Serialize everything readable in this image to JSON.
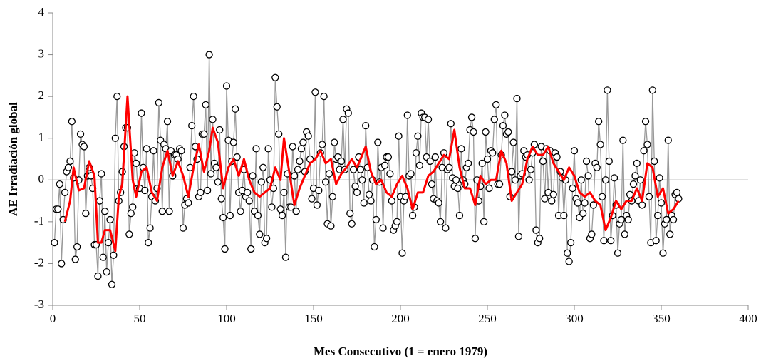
{
  "chart_data": {
    "type": "line",
    "xlabel": "Mes Consecutivo (1 = enero 1979)",
    "ylabel": "AE Irradiación global",
    "xlim": [
      0,
      400
    ],
    "xticks": [
      0,
      50,
      100,
      150,
      200,
      250,
      300,
      350,
      400
    ],
    "ylim": [
      -3,
      4
    ],
    "yticks": [
      -3,
      -2,
      -1,
      0,
      1,
      2,
      3,
      4
    ],
    "series": [
      {
        "color": "#999999",
        "marker": true,
        "x": [
          1,
          2,
          3,
          4,
          5,
          6,
          7,
          8,
          9,
          10,
          11,
          12,
          13,
          14,
          15,
          16,
          17,
          18,
          19,
          20,
          21,
          22,
          23,
          24,
          25,
          26,
          27,
          28,
          29,
          30,
          31,
          32,
          33,
          34,
          35,
          36,
          37,
          38,
          39,
          40,
          41,
          42,
          43,
          44,
          45,
          46,
          47,
          48,
          49,
          50,
          51,
          52,
          53,
          54,
          55,
          56,
          57,
          58,
          59,
          60,
          61,
          62,
          63,
          64,
          65,
          66,
          67,
          68,
          69,
          70,
          71,
          72,
          73,
          74,
          75,
          76,
          77,
          78,
          79,
          80,
          81,
          82,
          83,
          84,
          85,
          86,
          87,
          88,
          89,
          90,
          91,
          92,
          93,
          94,
          95,
          96,
          97,
          98,
          99,
          100,
          101,
          102,
          103,
          104,
          105,
          106,
          107,
          108,
          109,
          110,
          111,
          112,
          113,
          114,
          115,
          116,
          117,
          118,
          119,
          120,
          121,
          122,
          123,
          124,
          125,
          126,
          127,
          128,
          129,
          130,
          131,
          132,
          133,
          134,
          135,
          136,
          137,
          138,
          139,
          140,
          141,
          142,
          143,
          144,
          145,
          146,
          147,
          148,
          149,
          150,
          151,
          152,
          153,
          154,
          155,
          156,
          157,
          158,
          159,
          160,
          161,
          162,
          163,
          164,
          165,
          166,
          167,
          168,
          169,
          170,
          171,
          172,
          173,
          174,
          175,
          176,
          177,
          178,
          179,
          180,
          181,
          182,
          183,
          184,
          185,
          186,
          187,
          188,
          189,
          190,
          191,
          192,
          193,
          194,
          195,
          196,
          197,
          198,
          199,
          200,
          201,
          202,
          203,
          204,
          205,
          206,
          207,
          208,
          209,
          210,
          211,
          212,
          213,
          214,
          215,
          216,
          217,
          218,
          219,
          220,
          221,
          222,
          223,
          224,
          225,
          226,
          227,
          228,
          229,
          230,
          231,
          232,
          233,
          234,
          235,
          236,
          237,
          238,
          239,
          240,
          241,
          242,
          243,
          244,
          245,
          246,
          247,
          248,
          249,
          250,
          251,
          252,
          253,
          254,
          255,
          256,
          257,
          258,
          259,
          260,
          261,
          262,
          263,
          264,
          265,
          266,
          267,
          268,
          269,
          270,
          271,
          272,
          273,
          274,
          275,
          276,
          277,
          278,
          279,
          280,
          281,
          282,
          283,
          284,
          285,
          286,
          287,
          288,
          289,
          290,
          291,
          292,
          293,
          294,
          295,
          296,
          297,
          298,
          299,
          300,
          301,
          302,
          303,
          304,
          305,
          306,
          307,
          308,
          309,
          310,
          311,
          312,
          313,
          314,
          315,
          316,
          317,
          318,
          319,
          320,
          321,
          322,
          323,
          324,
          325,
          326,
          327,
          328,
          329,
          330,
          331,
          332,
          333,
          334,
          335,
          336,
          337,
          338,
          339,
          340,
          341,
          342,
          343,
          344,
          345,
          346,
          347,
          348,
          349,
          350,
          351,
          352,
          353,
          354,
          355,
          356,
          357,
          358,
          359,
          360
        ],
        "values": [
          -1.5,
          -0.7,
          -0.7,
          -0.1,
          -2.0,
          -0.95,
          -0.3,
          0.2,
          0.3,
          0.45,
          1.4,
          0.05,
          -1.9,
          -1.6,
          0.0,
          1.1,
          0.85,
          0.8,
          -0.8,
          0.1,
          0.3,
          0.1,
          -0.2,
          -1.55,
          -1.55,
          -2.3,
          -0.5,
          0.15,
          -1.85,
          -0.75,
          -2.2,
          -1.5,
          -0.95,
          -2.5,
          -1.8,
          1.0,
          2.0,
          -0.5,
          -0.3,
          0.2,
          0.8,
          1.25,
          1.25,
          -1.3,
          -0.8,
          -0.65,
          0.65,
          0.4,
          -0.2,
          -0.2,
          1.6,
          0.3,
          -0.25,
          0.75,
          -1.5,
          -1.15,
          -0.4,
          0.7,
          -0.5,
          -0.2,
          1.85,
          0.95,
          -0.75,
          0.85,
          0.75,
          1.4,
          -0.75,
          0.7,
          0.1,
          0.6,
          0.6,
          0.5,
          0.75,
          0.7,
          -1.15,
          -0.6,
          -0.45,
          -0.55,
          0.3,
          1.3,
          2.0,
          0.8,
          0.5,
          -0.4,
          -0.3,
          1.1,
          1.1,
          1.8,
          -0.25,
          3.0,
          0.15,
          1.45,
          0.4,
          0.3,
          -0.05,
          1.2,
          -0.45,
          -0.9,
          -1.65,
          2.25,
          0.95,
          -0.85,
          0.45,
          0.9,
          1.7,
          0.55,
          -0.3,
          -0.75,
          -0.25,
          0.25,
          -0.4,
          -0.3,
          -0.5,
          -1.65,
          0.1,
          -0.75,
          0.75,
          -0.85,
          -1.3,
          -0.05,
          0.3,
          -1.5,
          -1.4,
          0.75,
          0.0,
          -0.65,
          -0.2,
          2.45,
          1.75,
          1.1,
          -0.7,
          -0.85,
          -0.3,
          -1.85,
          0.15,
          -0.65,
          -0.65,
          0.8,
          0.1,
          -0.75,
          0.25,
          0.45,
          0.75,
          0.9,
          0.2,
          1.15,
          1.05,
          0.5,
          -0.45,
          -0.2,
          2.1,
          -0.6,
          -0.25,
          0.65,
          0.85,
          2.0,
          -0.05,
          -1.05,
          0.15,
          -1.1,
          -0.4,
          0.9,
          0.5,
          0.55,
          0.25,
          0.45,
          1.45,
          0.25,
          1.7,
          1.6,
          -0.8,
          -1.05,
          0.25,
          -0.15,
          -0.3,
          0.55,
          0.25,
          0.0,
          -0.55,
          1.3,
          0.3,
          -0.35,
          -0.5,
          0.0,
          -1.6,
          -0.95,
          0.9,
          -0.05,
          0.3,
          -1.15,
          0.35,
          0.55,
          0.55,
          0.15,
          -0.5,
          -1.2,
          -1.1,
          -1.0,
          1.05,
          -0.4,
          -1.75,
          -0.5,
          -0.4,
          1.55,
          0.1,
          0.15,
          -0.85,
          -0.65,
          0.65,
          1.05,
          0.35,
          1.6,
          1.5,
          1.5,
          0.55,
          1.45,
          0.45,
          -0.1,
          -0.45,
          0.55,
          -0.5,
          -0.55,
          -1.0,
          0.3,
          0.65,
          -1.15,
          0.25,
          0.3,
          1.35,
          0.05,
          -0.15,
          0.0,
          -0.2,
          -0.85,
          0.75,
          0.0,
          -0.1,
          0.3,
          0.4,
          1.2,
          1.5,
          1.15,
          -1.4,
          0.0,
          -0.5,
          -0.15,
          0.4,
          -1.0,
          1.15,
          0.5,
          -0.2,
          0.7,
          0.65,
          1.45,
          1.8,
          -0.1,
          -0.1,
          0.6,
          1.3,
          1.55,
          1.1,
          1.15,
          -0.4,
          0.2,
          0.9,
          0.0,
          1.95,
          -1.35,
          0.1,
          0.15,
          0.7,
          0.55,
          0.6,
          0.0,
          0.25,
          0.65,
          0.85,
          -1.2,
          -1.5,
          -1.4,
          0.8,
          0.45,
          -0.45,
          0.75,
          -0.3,
          0.7,
          -0.5,
          -0.35,
          0.65,
          0.55,
          -0.85,
          0.2,
          0.05,
          -0.85,
          0.0,
          -1.75,
          -1.95,
          -1.5,
          -0.2,
          0.7,
          -0.45,
          -0.55,
          -0.9,
          0.0,
          -0.8,
          -0.55,
          0.45,
          0.1,
          -1.4,
          -1.3,
          -0.6,
          0.4,
          0.3,
          1.4,
          0.85,
          -0.4,
          -1.45,
          0.0,
          2.15,
          0.45,
          -1.45,
          -0.85,
          0.05,
          -0.6,
          -1.75,
          -1.05,
          -0.95,
          0.95,
          -1.3,
          -0.85,
          -0.95,
          -0.35,
          -0.5,
          -0.1,
          0.1,
          0.4,
          -0.5,
          0.0,
          -0.6,
          0.7,
          1.4,
          0.85,
          -0.4,
          -1.5,
          2.15,
          0.45,
          -1.45,
          -0.85,
          0.05,
          -0.55,
          -1.75,
          -1.05,
          -0.95,
          0.95,
          -1.3,
          -0.85,
          -0.95,
          -0.35,
          -0.3,
          -0.45
        ]
      },
      {
        "color": "#ff0000",
        "marker": false,
        "x": [
          7,
          10,
          12,
          15,
          18,
          21,
          24,
          26,
          28,
          30,
          33,
          36,
          38,
          40,
          43,
          46,
          48,
          51,
          54,
          57,
          60,
          63,
          66,
          69,
          72,
          75,
          78,
          81,
          84,
          87,
          90,
          92,
          95,
          98,
          101,
          104,
          107,
          110,
          113,
          116,
          119,
          122,
          125,
          128,
          131,
          133,
          136,
          139,
          142,
          145,
          148,
          151,
          154,
          157,
          160,
          163,
          166,
          169,
          172,
          175,
          178,
          180,
          183,
          186,
          189,
          192,
          195,
          198,
          201,
          204,
          207,
          210,
          213,
          216,
          219,
          222,
          225,
          228,
          231,
          234,
          237,
          240,
          243,
          246,
          249,
          252,
          255,
          258,
          261,
          264,
          267,
          270,
          273,
          276,
          279,
          282,
          285,
          288,
          291,
          294,
          297,
          300,
          303,
          306,
          309,
          312,
          315,
          318,
          321,
          324,
          327,
          330,
          333,
          336,
          339,
          342,
          345,
          348,
          351,
          354,
          357,
          360
        ],
        "values": [
          -1.0,
          -0.5,
          0.3,
          -0.25,
          -0.2,
          0.45,
          0.1,
          -1.5,
          -1.5,
          -1.2,
          -1.2,
          -1.7,
          -0.4,
          -0.1,
          2.0,
          0.0,
          -0.4,
          0.2,
          0.3,
          -0.3,
          -0.5,
          0.3,
          0.7,
          0.1,
          0.45,
          0.1,
          -0.4,
          0.3,
          0.85,
          0.2,
          0.7,
          1.25,
          0.9,
          -0.2,
          0.3,
          0.5,
          0.1,
          0.5,
          0.0,
          -0.3,
          -0.4,
          -0.3,
          -0.2,
          0.3,
          0.0,
          1.0,
          0.2,
          -0.6,
          -0.2,
          0.1,
          0.4,
          0.5,
          0.7,
          0.4,
          0.5,
          -0.1,
          0.15,
          0.3,
          0.5,
          0.3,
          0.6,
          0.8,
          0.2,
          -0.1,
          0.0,
          -0.3,
          -0.4,
          -0.1,
          0.1,
          -0.2,
          -0.7,
          -0.3,
          -0.3,
          0.1,
          0.2,
          0.4,
          0.6,
          0.5,
          1.2,
          0.3,
          -0.2,
          -0.2,
          -0.6,
          0.1,
          -0.1,
          0.0,
          0.0,
          0.7,
          0.4,
          -0.5,
          -0.3,
          -0.1,
          0.5,
          0.8,
          0.6,
          0.6,
          0.8,
          0.4,
          0.2,
          0.0,
          0.3,
          0.1,
          -0.3,
          -0.4,
          -0.3,
          -0.5,
          -0.6,
          -1.2,
          -0.9,
          -0.5,
          -0.7,
          -0.5,
          -0.5,
          -0.2,
          -0.5,
          0.4,
          0.3,
          -0.4,
          -0.2,
          -0.8,
          -0.7,
          -0.5
        ]
      }
    ]
  }
}
